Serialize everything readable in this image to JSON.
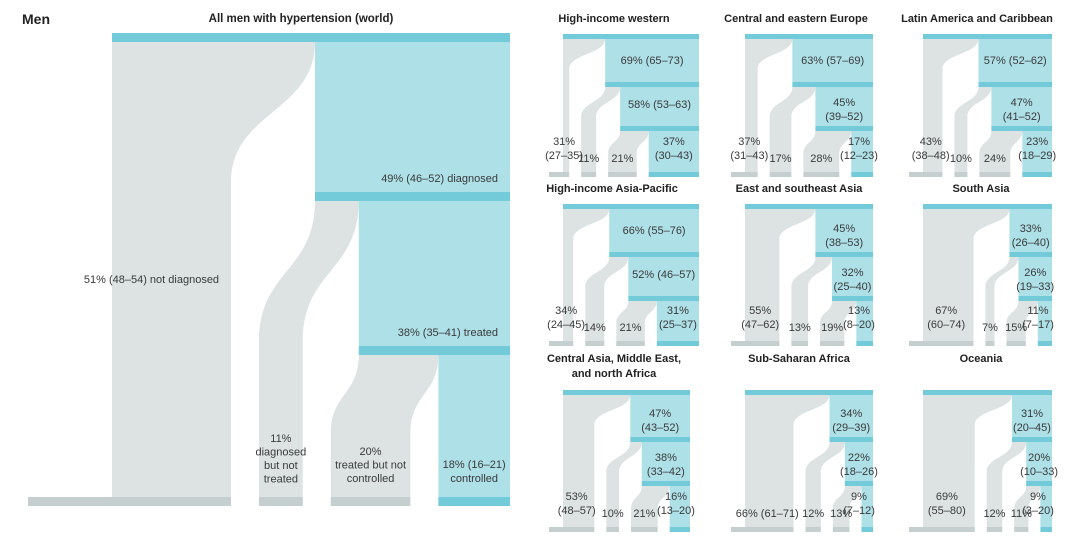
{
  "page_label": "Men",
  "colors": {
    "grey": "#dde3e3",
    "grey_bar": "#c5cfcf",
    "teal": "#aee0e8",
    "teal_bar": "#73cbd9"
  },
  "chart_data": [
    {
      "type": "sankey",
      "title": "All men with hypertension (world)",
      "diagnosed": 49,
      "treated": 38,
      "controlled": 18,
      "not_diagnosed": 51,
      "diagnosed_not_treated": 11,
      "treated_not_controlled": 20,
      "labels": {
        "diagnosed": "49% (46–52) diagnosed",
        "treated": "38% (35–41) treated",
        "not_diagnosed": "51% (48–54) not diagnosed",
        "diagnosed_not_treated": [
          "11%",
          "diagnosed",
          "but not",
          "treated"
        ],
        "treated_not_controlled": [
          "20%",
          "treated but not",
          "controlled"
        ],
        "controlled": [
          "18% (16–21)",
          "controlled"
        ]
      }
    },
    {
      "type": "sankey",
      "title": "High-income western",
      "diagnosed": 69,
      "treated": 58,
      "controlled": 37,
      "not_diagnosed": 31,
      "diagnosed_not_treated": 11,
      "treated_not_controlled": 21,
      "labels": {
        "diagnosed": [
          "69% (65–73)"
        ],
        "treated": [
          "58% (53–63)"
        ],
        "not_diagnosed": [
          "31%",
          "(27–35)"
        ],
        "diagnosed_not_treated": "11%",
        "treated_not_controlled": "21%",
        "controlled": [
          "37%",
          "(30–43)"
        ]
      }
    },
    {
      "type": "sankey",
      "title": "Central and eastern Europe",
      "diagnosed": 63,
      "treated": 45,
      "controlled": 17,
      "not_diagnosed": 37,
      "diagnosed_not_treated": 17,
      "treated_not_controlled": 28,
      "labels": {
        "diagnosed": [
          "63% (57–69)"
        ],
        "treated": [
          "45%",
          "(39–52)"
        ],
        "not_diagnosed": [
          "37%",
          "(31–43)"
        ],
        "diagnosed_not_treated": "17%",
        "treated_not_controlled": "28%",
        "controlled": [
          "17%",
          "(12–23)"
        ]
      }
    },
    {
      "type": "sankey",
      "title": "Latin America and Caribbean",
      "diagnosed": 57,
      "treated": 47,
      "controlled": 23,
      "not_diagnosed": 43,
      "diagnosed_not_treated": 10,
      "treated_not_controlled": 24,
      "labels": {
        "diagnosed": [
          "57% (52–62)"
        ],
        "treated": [
          "47%",
          "(41–52)"
        ],
        "not_diagnosed": [
          "43%",
          "(38–48)"
        ],
        "diagnosed_not_treated": "10%",
        "treated_not_controlled": "24%",
        "controlled": [
          "23%",
          "(18–29)"
        ]
      }
    },
    {
      "type": "sankey",
      "title": "High-income Asia-Pacific",
      "diagnosed": 66,
      "treated": 52,
      "controlled": 31,
      "not_diagnosed": 34,
      "diagnosed_not_treated": 14,
      "treated_not_controlled": 21,
      "labels": {
        "diagnosed": [
          "66% (55–76)"
        ],
        "treated": [
          "52% (46–57)"
        ],
        "not_diagnosed": [
          "34%",
          "(24–45)"
        ],
        "diagnosed_not_treated": "14%",
        "treated_not_controlled": "21%",
        "controlled": [
          "31%",
          "(25–37)"
        ]
      }
    },
    {
      "type": "sankey",
      "title": "East and southeast Asia",
      "diagnosed": 45,
      "treated": 32,
      "controlled": 13,
      "not_diagnosed": 55,
      "diagnosed_not_treated": 13,
      "treated_not_controlled": 19,
      "labels": {
        "diagnosed": [
          "45%",
          "(38–53)"
        ],
        "treated": [
          "32%",
          "(25–40)"
        ],
        "not_diagnosed": [
          "55%",
          "(47–62)"
        ],
        "diagnosed_not_treated": "13%",
        "treated_not_controlled": "19%",
        "controlled": [
          "13%",
          "(8–20)"
        ]
      }
    },
    {
      "type": "sankey",
      "title": "South Asia",
      "diagnosed": 33,
      "treated": 26,
      "controlled": 11,
      "not_diagnosed": 67,
      "diagnosed_not_treated": 7,
      "treated_not_controlled": 15,
      "labels": {
        "diagnosed": [
          "33%",
          "(26–40)"
        ],
        "treated": [
          "26%",
          "(19–33)"
        ],
        "not_diagnosed": [
          "67%",
          "(60–74)"
        ],
        "diagnosed_not_treated": "7%",
        "treated_not_controlled": "15%",
        "controlled": [
          "11%",
          "(7–17)"
        ]
      }
    },
    {
      "type": "sankey",
      "title": "Central Asia, Middle East, and north Africa",
      "title_lines": [
        "Central Asia, Middle East,",
        "and north Africa"
      ],
      "diagnosed": 47,
      "treated": 38,
      "controlled": 16,
      "not_diagnosed": 53,
      "diagnosed_not_treated": 10,
      "treated_not_controlled": 21,
      "labels": {
        "diagnosed": [
          "47%",
          "(43–52)"
        ],
        "treated": [
          "38%",
          "(33–42)"
        ],
        "not_diagnosed": [
          "53%",
          "(48–57)"
        ],
        "diagnosed_not_treated": "10%",
        "treated_not_controlled": "21%",
        "controlled": [
          "16%",
          "(13–20)"
        ]
      }
    },
    {
      "type": "sankey",
      "title": "Sub-Saharan Africa",
      "diagnosed": 34,
      "treated": 22,
      "controlled": 9,
      "not_diagnosed": 66,
      "diagnosed_not_treated": 12,
      "treated_not_controlled": 13,
      "labels": {
        "diagnosed": [
          "34%",
          "(29–39)"
        ],
        "treated": [
          "22%",
          "(18–26)"
        ],
        "not_diagnosed": [
          "66% (61–71)"
        ],
        "diagnosed_not_treated": "12%",
        "treated_not_controlled": "13%",
        "controlled": [
          "9%",
          "(7–12)"
        ]
      }
    },
    {
      "type": "sankey",
      "title": "Oceania",
      "diagnosed": 31,
      "treated": 20,
      "controlled": 9,
      "not_diagnosed": 69,
      "diagnosed_not_treated": 12,
      "treated_not_controlled": 11,
      "labels": {
        "diagnosed": [
          "31%",
          "(20–45)"
        ],
        "treated": [
          "20%",
          "(10–33)"
        ],
        "not_diagnosed": [
          "69%",
          "(55–80)"
        ],
        "diagnosed_not_treated": "12%",
        "treated_not_controlled": "11%",
        "controlled": [
          "9%",
          "(3–20)"
        ]
      }
    }
  ]
}
